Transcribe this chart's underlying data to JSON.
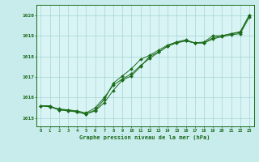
{
  "title": "Graphe pression niveau de la mer (hPa)",
  "background_color": "#c8ecec",
  "plot_bg_color": "#d8f4f4",
  "grid_color": "#a8d4d4",
  "line_color": "#1a6b1a",
  "marker_color": "#1a6b1a",
  "xlim": [
    -0.5,
    23.5
  ],
  "ylim": [
    1014.6,
    1020.5
  ],
  "yticks": [
    1015,
    1016,
    1017,
    1018,
    1019,
    1020
  ],
  "xticks": [
    0,
    1,
    2,
    3,
    4,
    5,
    6,
    7,
    8,
    9,
    10,
    11,
    12,
    13,
    14,
    15,
    16,
    17,
    18,
    19,
    20,
    21,
    22,
    23
  ],
  "series1_x": [
    0,
    1,
    2,
    3,
    4,
    5,
    6,
    7,
    8,
    9,
    10,
    11,
    12,
    13,
    14,
    15,
    16,
    17,
    18,
    19,
    20,
    21,
    22,
    23
  ],
  "series1_y": [
    1015.6,
    1015.6,
    1015.4,
    1015.4,
    1015.3,
    1015.2,
    1015.35,
    1015.75,
    1016.35,
    1016.85,
    1017.05,
    1017.5,
    1018.0,
    1018.2,
    1018.5,
    1018.65,
    1018.75,
    1018.65,
    1018.7,
    1019.0,
    1019.0,
    1019.1,
    1019.15,
    1020.0
  ],
  "series2_x": [
    0,
    1,
    2,
    3,
    4,
    5,
    6,
    7,
    8,
    9,
    10,
    11,
    12,
    13,
    14,
    15,
    16,
    17,
    18,
    19,
    20,
    21,
    22,
    23
  ],
  "series2_y": [
    1015.6,
    1015.55,
    1015.4,
    1015.35,
    1015.3,
    1015.2,
    1015.4,
    1015.9,
    1016.7,
    1017.05,
    1017.4,
    1017.85,
    1018.05,
    1018.3,
    1018.55,
    1018.7,
    1018.8,
    1018.65,
    1018.65,
    1018.9,
    1019.0,
    1019.1,
    1019.2,
    1020.0
  ],
  "series3_x": [
    0,
    1,
    2,
    3,
    4,
    5,
    6,
    7,
    8,
    9,
    10,
    11,
    12,
    13,
    14,
    15,
    16,
    17,
    18,
    19,
    20,
    21,
    22,
    23
  ],
  "series3_y": [
    1015.6,
    1015.55,
    1015.45,
    1015.4,
    1015.35,
    1015.25,
    1015.5,
    1016.0,
    1016.6,
    1016.9,
    1017.15,
    1017.55,
    1017.9,
    1018.2,
    1018.5,
    1018.7,
    1018.75,
    1018.65,
    1018.65,
    1018.85,
    1018.95,
    1019.05,
    1019.1,
    1019.9
  ]
}
